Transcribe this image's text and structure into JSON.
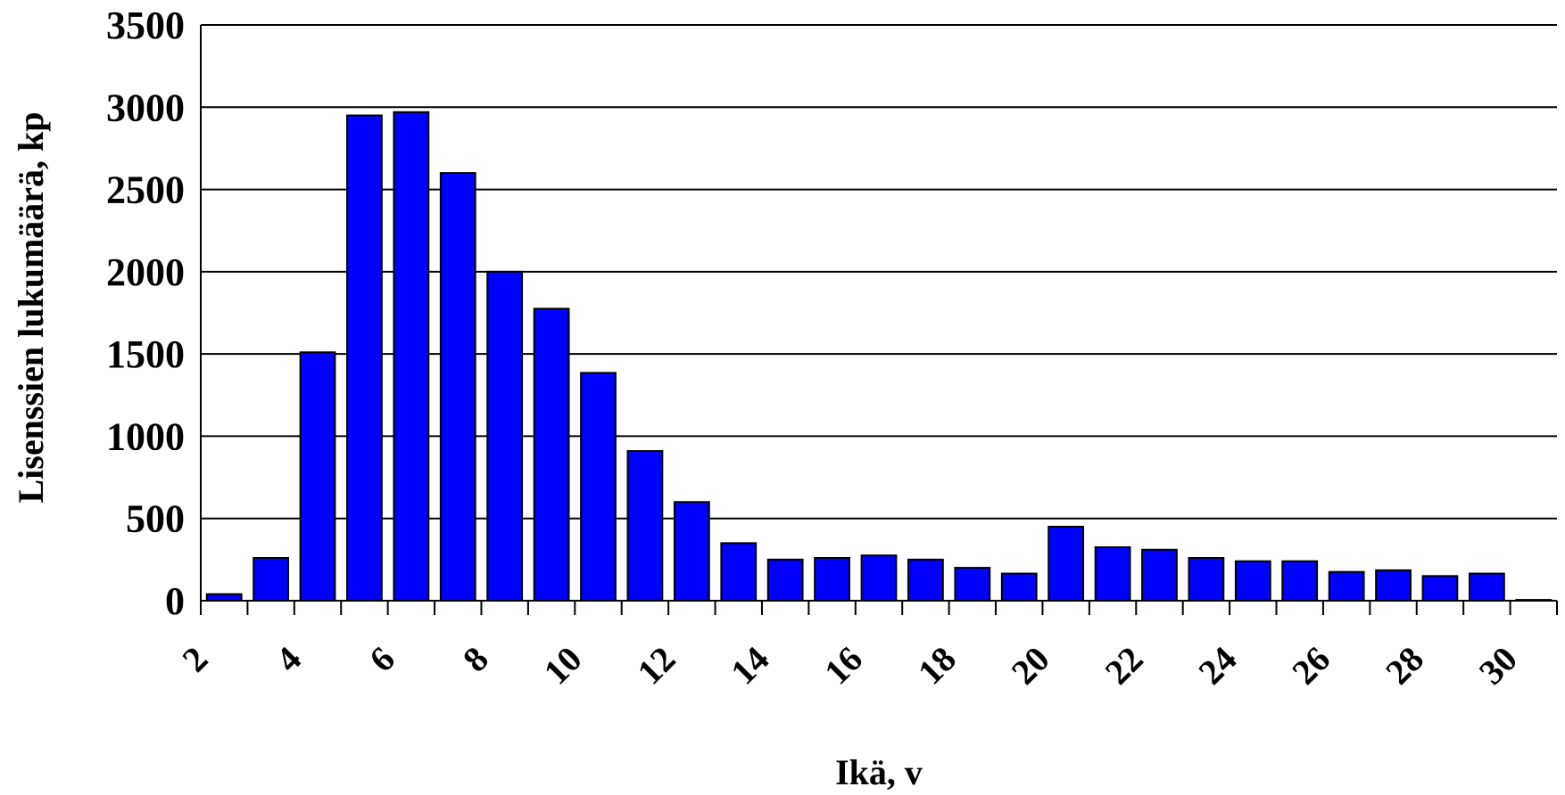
{
  "chart_data": {
    "type": "bar",
    "x": [
      3,
      4,
      5,
      6,
      7,
      8,
      9,
      10,
      11,
      12,
      13,
      14,
      15,
      16,
      17,
      18,
      19,
      20,
      21,
      22,
      23,
      24,
      25,
      26,
      27,
      28,
      29,
      30,
      31
    ],
    "values": [
      40,
      260,
      1510,
      2950,
      2970,
      2600,
      2000,
      1775,
      1385,
      910,
      600,
      350,
      250,
      260,
      275,
      250,
      200,
      165,
      450,
      325,
      310,
      260,
      240,
      240,
      175,
      185,
      150,
      165,
      5
    ],
    "xticks": [
      2,
      4,
      6,
      8,
      10,
      12,
      14,
      16,
      18,
      20,
      22,
      24,
      26,
      28,
      30
    ],
    "yticks": [
      0,
      500,
      1000,
      1500,
      2000,
      2500,
      3000,
      3500
    ],
    "xlabel": "Ikä, v",
    "ylabel": "Lisenssien lukumäärä, kp",
    "ylim": [
      0,
      3500
    ],
    "grid": true,
    "bar_color": "#0000FF",
    "bar_edge_color": "#000000"
  }
}
